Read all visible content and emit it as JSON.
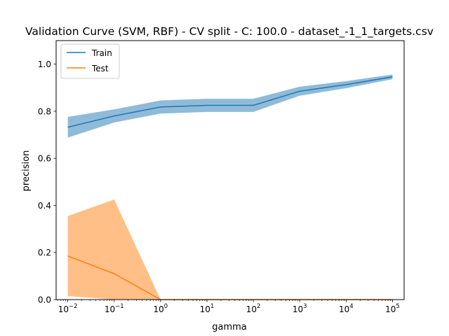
{
  "chart_data": {
    "type": "line",
    "title": "Validation Curve (SVM, RBF) - CV split - C: 100.0 - dataset_-1_1_targets.csv",
    "xlabel": "gamma",
    "ylabel": "precision",
    "xscale": "log",
    "x": [
      0.01,
      0.1,
      1,
      10,
      100,
      1000,
      10000,
      100000
    ],
    "xlim": [
      0.0056,
      178000
    ],
    "ylim": [
      0,
      1.1
    ],
    "x_ticks": [
      {
        "value": 0.01,
        "base": "10",
        "exp": "−2"
      },
      {
        "value": 0.1,
        "base": "10",
        "exp": "−1"
      },
      {
        "value": 1,
        "base": "10",
        "exp": "0"
      },
      {
        "value": 10,
        "base": "10",
        "exp": "1"
      },
      {
        "value": 100,
        "base": "10",
        "exp": "2"
      },
      {
        "value": 1000,
        "base": "10",
        "exp": "3"
      },
      {
        "value": 10000,
        "base": "10",
        "exp": "4"
      },
      {
        "value": 100000,
        "base": "10",
        "exp": "5"
      }
    ],
    "y_ticks": [
      {
        "value": 0.0,
        "label": "0.0"
      },
      {
        "value": 0.2,
        "label": "0.2"
      },
      {
        "value": 0.4,
        "label": "0.4"
      },
      {
        "value": 0.6,
        "label": "0.6"
      },
      {
        "value": 0.8,
        "label": "0.8"
      },
      {
        "value": 1.0,
        "label": "1.0"
      }
    ],
    "legend_position": "top-left",
    "grid": false,
    "series": [
      {
        "name": "Train",
        "color": "#1f77b4",
        "band_color": "#1f77b4",
        "band_opacity": 0.5,
        "values": [
          0.732,
          0.78,
          0.818,
          0.825,
          0.825,
          0.885,
          0.913,
          0.946
        ],
        "lower": [
          0.688,
          0.752,
          0.79,
          0.797,
          0.797,
          0.866,
          0.898,
          0.936
        ],
        "upper": [
          0.776,
          0.808,
          0.846,
          0.853,
          0.853,
          0.904,
          0.928,
          0.956
        ]
      },
      {
        "name": "Test",
        "color": "#ff7f0e",
        "band_color": "#ff7f0e",
        "band_opacity": 0.5,
        "values": [
          0.185,
          0.11,
          0.0,
          0.0,
          0.0,
          0.0,
          0.0,
          0.0
        ],
        "lower": [
          0.015,
          0.0,
          0.0,
          0.0,
          0.0,
          0.0,
          0.0,
          0.0
        ],
        "upper": [
          0.355,
          0.425,
          0.0,
          0.0,
          0.0,
          0.0,
          0.0,
          0.0
        ]
      }
    ]
  }
}
